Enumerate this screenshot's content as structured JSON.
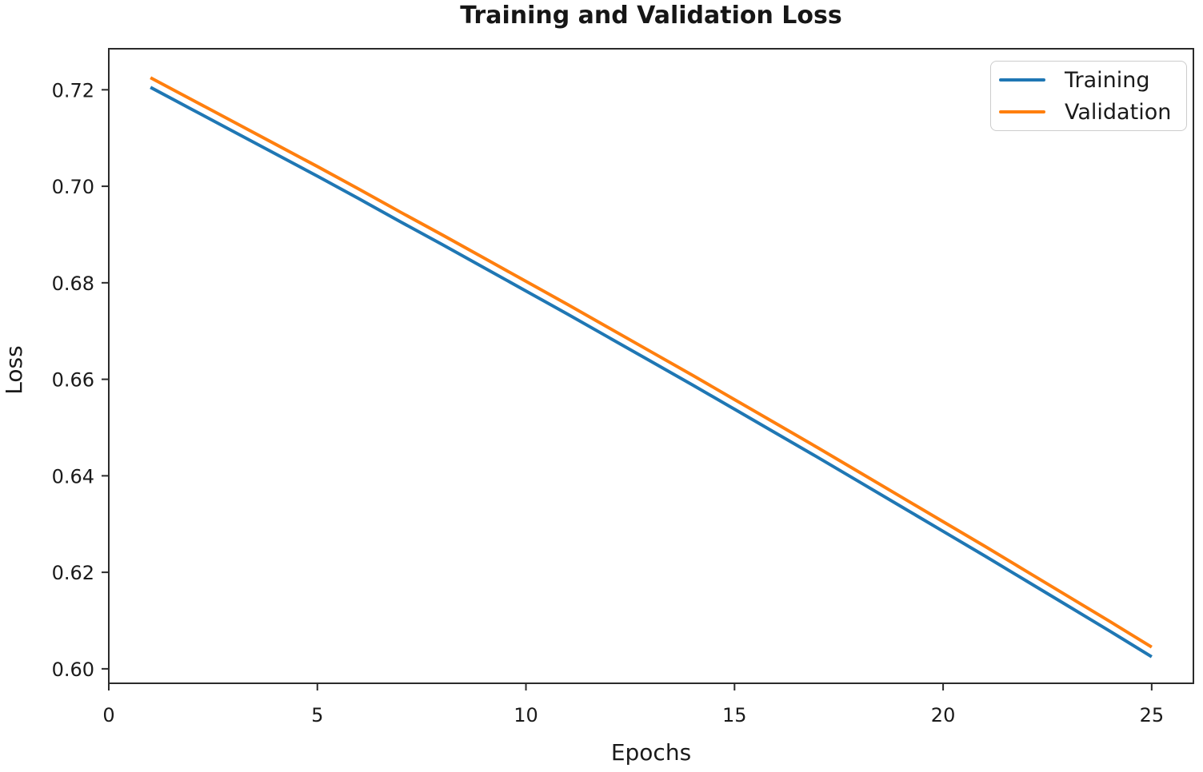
{
  "chart_data": {
    "type": "line",
    "title": "Training and Validation Loss",
    "xlabel": "Epochs",
    "ylabel": "Loss",
    "x": [
      1,
      2,
      3,
      4,
      5,
      6,
      7,
      8,
      9,
      10,
      11,
      12,
      13,
      14,
      15,
      16,
      17,
      18,
      19,
      20,
      21,
      22,
      23,
      24,
      25
    ],
    "series": [
      {
        "name": "Training",
        "color": "#1f77b4",
        "values": [
          0.7205,
          0.7159,
          0.7113,
          0.7067,
          0.7021,
          0.6974,
          0.6926,
          0.6879,
          0.6831,
          0.6783,
          0.6735,
          0.6686,
          0.6637,
          0.6588,
          0.6538,
          0.6488,
          0.6438,
          0.6387,
          0.6336,
          0.6285,
          0.6234,
          0.6182,
          0.613,
          0.6078,
          0.6025
        ]
      },
      {
        "name": "Validation",
        "color": "#ff7f0e",
        "values": [
          0.7225,
          0.7179,
          0.7133,
          0.7087,
          0.7041,
          0.6994,
          0.6946,
          0.6899,
          0.6851,
          0.6803,
          0.6755,
          0.6706,
          0.6657,
          0.6608,
          0.6558,
          0.6508,
          0.6458,
          0.6407,
          0.6356,
          0.6305,
          0.6254,
          0.6202,
          0.615,
          0.6098,
          0.6045
        ]
      }
    ],
    "xlim": [
      0,
      26
    ],
    "ylim": [
      0.597,
      0.7285
    ],
    "xticks": [
      0,
      5,
      10,
      15,
      20,
      25
    ],
    "yticks": [
      0.6,
      0.62,
      0.64,
      0.66,
      0.68,
      0.7,
      0.72
    ],
    "grid": false,
    "legend_position": "upper right",
    "axis_color": "#2b2b2b",
    "text_color": "#1a1a1a",
    "background": "#ffffff"
  }
}
